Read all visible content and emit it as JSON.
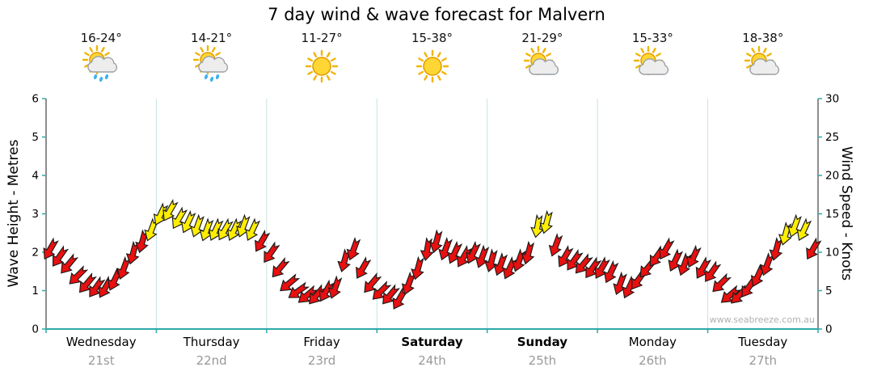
{
  "title": "7 day wind & wave forecast for Malvern",
  "watermark": "www.seabreeze.com.au",
  "axes": {
    "left_title": "Wave Height - Metres",
    "right_title": "Wind Speed - Knots",
    "left_ticks": [
      0,
      1,
      2,
      3,
      4,
      5,
      6
    ],
    "right_ticks": [
      0,
      5,
      10,
      15,
      20,
      25,
      30
    ]
  },
  "days": [
    {
      "name": "Wednesday",
      "date": "21st",
      "temp": "16-24°",
      "icon": "sun-cloud-rain",
      "bold": false
    },
    {
      "name": "Thursday",
      "date": "22nd",
      "temp": "14-21°",
      "icon": "sun-cloud-rain",
      "bold": false
    },
    {
      "name": "Friday",
      "date": "23rd",
      "temp": "11-27°",
      "icon": "sun",
      "bold": false
    },
    {
      "name": "Saturday",
      "date": "24th",
      "temp": "15-38°",
      "icon": "sun",
      "bold": true
    },
    {
      "name": "Sunday",
      "date": "25th",
      "temp": "21-29°",
      "icon": "sun-cloud",
      "bold": true
    },
    {
      "name": "Monday",
      "date": "26th",
      "temp": "15-33°",
      "icon": "sun-cloud",
      "bold": false
    },
    {
      "name": "Tuesday",
      "date": "27th",
      "temp": "18-38°",
      "icon": "sun-cloud",
      "bold": false
    }
  ],
  "chart_data": {
    "type": "scatter",
    "subtype": "wind-direction-arrows",
    "title": "7 day wind & wave forecast for Malvern",
    "x_axis": {
      "categories": [
        "Wednesday 21st",
        "Thursday 22nd",
        "Friday 23rd",
        "Saturday 24th",
        "Sunday 25th",
        "Monday 26th",
        "Tuesday 27th"
      ],
      "points_per_day": 12,
      "interval_hours": 2
    },
    "y_left_axis": {
      "label": "Wave Height - Metres",
      "range": [
        0,
        6
      ],
      "ticks": [
        0,
        1,
        2,
        3,
        4,
        5,
        6
      ]
    },
    "y_right_axis": {
      "label": "Wind Speed - Knots",
      "range": [
        0,
        30
      ],
      "ticks": [
        0,
        5,
        10,
        15,
        20,
        25,
        30
      ]
    },
    "series": [
      {
        "name": "wind_speed_knots",
        "values": [
          10.5,
          9.5,
          8.5,
          7,
          6,
          5.5,
          5.5,
          6.5,
          8,
          10,
          11.5,
          13,
          15,
          15.5,
          14.5,
          14,
          13.5,
          13,
          13,
          13,
          13,
          13.5,
          13,
          11.5,
          10,
          8,
          6,
          5,
          4.5,
          4.5,
          5,
          5.5,
          9,
          10.5,
          8,
          6,
          5,
          4.5,
          4,
          6,
          8,
          10.5,
          11.5,
          10.5,
          10,
          9.5,
          10,
          9.5,
          9,
          8.5,
          8,
          9,
          10,
          13.5,
          14,
          11,
          9.5,
          9,
          8.5,
          8,
          8,
          7.5,
          6,
          5.5,
          6.5,
          8,
          9.5,
          10.5,
          9,
          8.5,
          9.5,
          8,
          7.5,
          6,
          4.5,
          4.5,
          5.5,
          7,
          8.5,
          10.5,
          12.5,
          13.5,
          13,
          10.5
        ]
      },
      {
        "name": "wind_direction_deg",
        "values": [
          210,
          215,
          220,
          225,
          220,
          215,
          210,
          205,
          200,
          195,
          195,
          200,
          205,
          210,
          210,
          205,
          200,
          200,
          205,
          210,
          205,
          200,
          205,
          210,
          215,
          220,
          230,
          235,
          230,
          220,
          210,
          200,
          195,
          200,
          210,
          220,
          225,
          220,
          210,
          200,
          195,
          190,
          195,
          200,
          205,
          210,
          205,
          200,
          195,
          200,
          205,
          200,
          195,
          190,
          195,
          200,
          210,
          215,
          220,
          215,
          210,
          205,
          200,
          205,
          215,
          220,
          215,
          210,
          205,
          200,
          205,
          210,
          215,
          225,
          230,
          225,
          215,
          205,
          200,
          195,
          195,
          200,
          205,
          210
        ]
      }
    ],
    "style": {
      "arrow_color_low": "#e81010",
      "arrow_color_high": "#ffee00",
      "high_threshold_knots": 12.5,
      "axis_color": "#2da8a8",
      "grid": "vertical day separators only",
      "legend": "none"
    }
  }
}
